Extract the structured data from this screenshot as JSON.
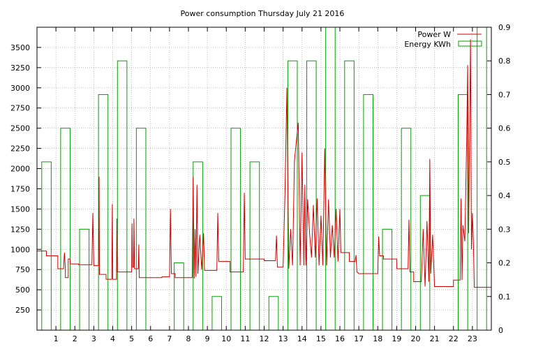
{
  "chart_data": {
    "type": "line",
    "title": "Power consumption Thursday July 21 2016",
    "xlabel": "",
    "ylabel": "",
    "xlim": [
      0,
      24
    ],
    "ylim": [
      0,
      3750
    ],
    "y2lim": [
      0,
      0.9
    ],
    "x_ticks": [
      1,
      2,
      3,
      4,
      5,
      6,
      7,
      8,
      9,
      10,
      11,
      12,
      13,
      14,
      15,
      16,
      17,
      18,
      19,
      20,
      21,
      22,
      23
    ],
    "y_ticks": [
      250,
      500,
      750,
      1000,
      1250,
      1500,
      1750,
      2000,
      2250,
      2500,
      2750,
      3000,
      3250,
      3500
    ],
    "y2_ticks": [
      0,
      0.1,
      0.2,
      0.3,
      0.4,
      0.5,
      0.6,
      0.7,
      0.8,
      0.9
    ],
    "grid": true,
    "legend": "top-right",
    "colors": {
      "power": "#d00000",
      "energy": "#00a000"
    },
    "series": [
      {
        "name": "Power W",
        "axis": "left",
        "points": [
          [
            0.0,
            980
          ],
          [
            0.5,
            980
          ],
          [
            0.5,
            920
          ],
          [
            1.1,
            920
          ],
          [
            1.1,
            760
          ],
          [
            1.4,
            760
          ],
          [
            1.45,
            960
          ],
          [
            1.5,
            760
          ],
          [
            1.5,
            650
          ],
          [
            1.65,
            650
          ],
          [
            1.65,
            880
          ],
          [
            1.75,
            880
          ],
          [
            1.75,
            820
          ],
          [
            2.2,
            820
          ],
          [
            2.2,
            810
          ],
          [
            2.9,
            810
          ],
          [
            2.95,
            1450
          ],
          [
            3.0,
            800
          ],
          [
            3.25,
            800
          ],
          [
            3.28,
            1900
          ],
          [
            3.3,
            690
          ],
          [
            3.65,
            690
          ],
          [
            3.65,
            630
          ],
          [
            3.95,
            630
          ],
          [
            3.98,
            1560
          ],
          [
            4.0,
            630
          ],
          [
            4.2,
            630
          ],
          [
            4.22,
            1380
          ],
          [
            4.25,
            720
          ],
          [
            5.0,
            720
          ],
          [
            5.02,
            1320
          ],
          [
            5.05,
            780
          ],
          [
            5.1,
            780
          ],
          [
            5.12,
            1380
          ],
          [
            5.15,
            760
          ],
          [
            5.35,
            760
          ],
          [
            5.38,
            1060
          ],
          [
            5.4,
            650
          ],
          [
            6.6,
            650
          ],
          [
            6.6,
            660
          ],
          [
            7.0,
            660
          ],
          [
            7.05,
            1500
          ],
          [
            7.1,
            700
          ],
          [
            7.3,
            700
          ],
          [
            7.3,
            650
          ],
          [
            8.2,
            650
          ],
          [
            8.25,
            1900
          ],
          [
            8.3,
            640
          ],
          [
            8.35,
            1250
          ],
          [
            8.4,
            660
          ],
          [
            8.45,
            1800
          ],
          [
            8.5,
            700
          ],
          [
            8.6,
            1180
          ],
          [
            8.7,
            750
          ],
          [
            8.8,
            1200
          ],
          [
            8.85,
            740
          ],
          [
            9.5,
            740
          ],
          [
            9.55,
            1450
          ],
          [
            9.6,
            850
          ],
          [
            10.2,
            850
          ],
          [
            10.2,
            720
          ],
          [
            10.9,
            720
          ],
          [
            10.95,
            1700
          ],
          [
            11.0,
            880
          ],
          [
            12.0,
            880
          ],
          [
            12.0,
            860
          ],
          [
            12.6,
            860
          ],
          [
            12.65,
            1170
          ],
          [
            12.7,
            780
          ],
          [
            13.0,
            780
          ],
          [
            13.1,
            1700
          ],
          [
            13.2,
            3000
          ],
          [
            13.3,
            760
          ],
          [
            13.4,
            1250
          ],
          [
            13.5,
            800
          ],
          [
            13.6,
            2100
          ],
          [
            13.8,
            2570
          ],
          [
            13.9,
            800
          ],
          [
            14.0,
            2200
          ],
          [
            14.1,
            800
          ],
          [
            14.15,
            1800
          ],
          [
            14.2,
            800
          ],
          [
            14.3,
            1620
          ],
          [
            14.4,
            1200
          ],
          [
            14.5,
            900
          ],
          [
            14.6,
            1550
          ],
          [
            14.7,
            900
          ],
          [
            14.8,
            1630
          ],
          [
            14.9,
            800
          ],
          [
            15.0,
            1420
          ],
          [
            15.1,
            800
          ],
          [
            15.2,
            2250
          ],
          [
            15.3,
            800
          ],
          [
            15.4,
            1620
          ],
          [
            15.5,
            900
          ],
          [
            15.6,
            1300
          ],
          [
            15.7,
            900
          ],
          [
            15.8,
            1500
          ],
          [
            15.9,
            850
          ],
          [
            16.0,
            1500
          ],
          [
            16.05,
            960
          ],
          [
            16.5,
            960
          ],
          [
            16.5,
            850
          ],
          [
            16.8,
            850
          ],
          [
            16.85,
            930
          ],
          [
            16.9,
            720
          ],
          [
            17.0,
            700
          ],
          [
            18.0,
            700
          ],
          [
            18.05,
            1160
          ],
          [
            18.1,
            920
          ],
          [
            18.3,
            920
          ],
          [
            18.3,
            880
          ],
          [
            19.0,
            880
          ],
          [
            19.0,
            760
          ],
          [
            19.6,
            760
          ],
          [
            19.65,
            1370
          ],
          [
            19.7,
            720
          ],
          [
            19.9,
            720
          ],
          [
            19.9,
            600
          ],
          [
            20.3,
            600
          ],
          [
            20.4,
            1250
          ],
          [
            20.5,
            540
          ],
          [
            20.6,
            1350
          ],
          [
            20.7,
            600
          ],
          [
            20.75,
            2120
          ],
          [
            20.8,
            700
          ],
          [
            20.9,
            1180
          ],
          [
            21.0,
            540
          ],
          [
            22.0,
            540
          ],
          [
            22.0,
            620
          ],
          [
            22.35,
            620
          ],
          [
            22.4,
            1630
          ],
          [
            22.45,
            620
          ],
          [
            22.5,
            1300
          ],
          [
            22.6,
            1100
          ],
          [
            22.7,
            2400
          ],
          [
            22.75,
            3280
          ],
          [
            22.8,
            1200
          ],
          [
            22.9,
            3600
          ],
          [
            22.95,
            1000
          ],
          [
            23.0,
            1450
          ],
          [
            23.05,
            1100
          ],
          [
            23.1,
            530
          ],
          [
            24.0,
            530
          ]
        ]
      },
      {
        "name": "Energy KWh",
        "axis": "right",
        "bar_width": 0.5,
        "values": [
          0.5,
          0.6,
          0.3,
          0.7,
          0.8,
          0.6,
          0,
          0.2,
          0.5,
          0.1,
          0.6,
          0.5,
          0.1,
          0.8,
          0.8,
          0.9,
          0.8,
          0.7,
          0.3,
          0.6,
          0.4,
          0,
          0.7,
          0.9
        ]
      }
    ]
  }
}
